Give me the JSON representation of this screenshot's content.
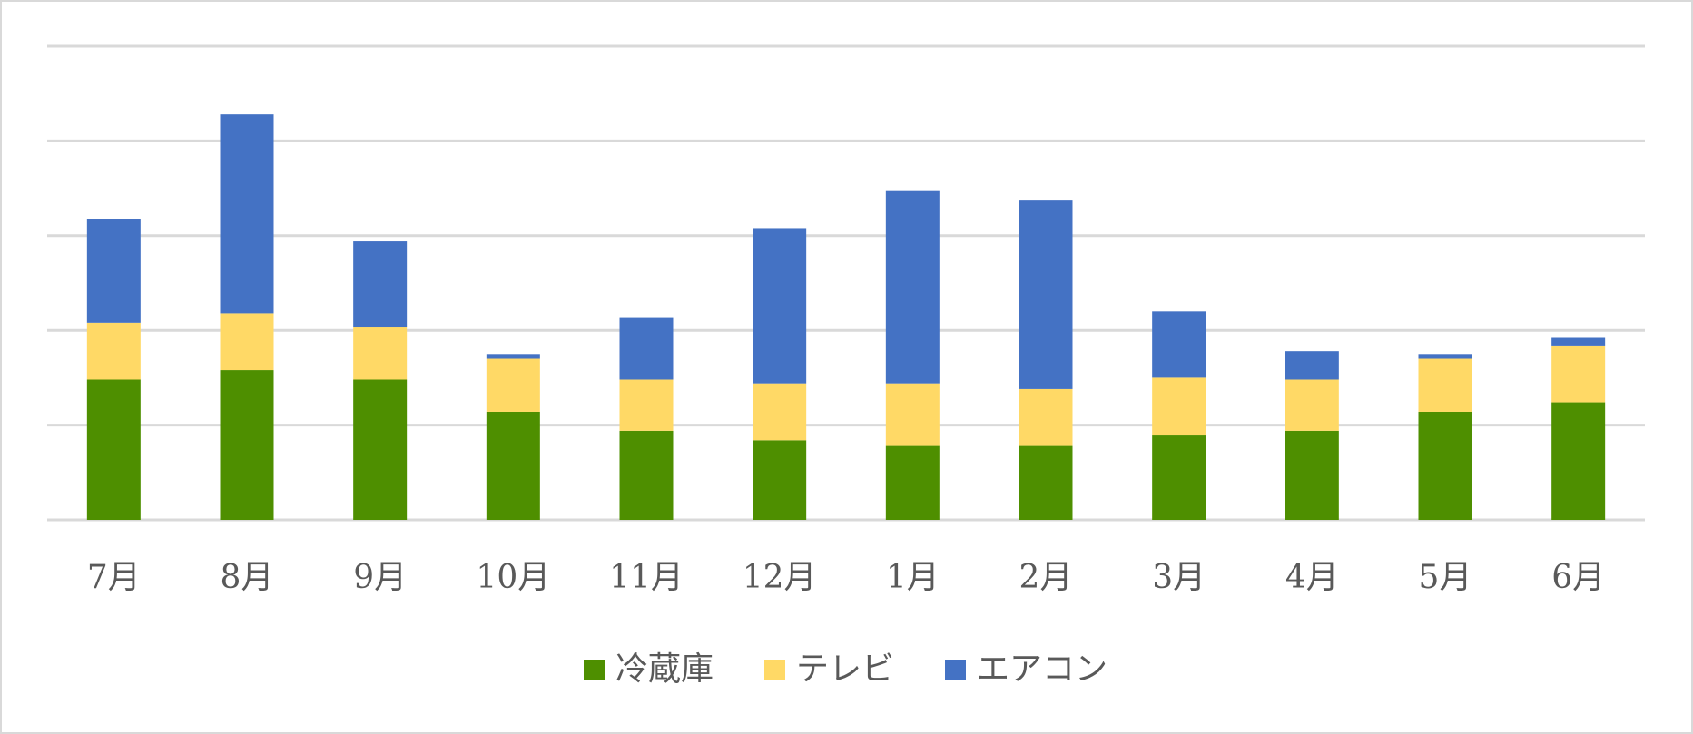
{
  "chart_data": {
    "type": "bar",
    "stacked": true,
    "categories": [
      "7月",
      "8月",
      "9月",
      "10月",
      "11月",
      "12月",
      "1月",
      "2月",
      "3月",
      "4月",
      "5月",
      "6月"
    ],
    "series": [
      {
        "name": "冷蔵庫",
        "color": "#4e8f00",
        "values": [
          7.4,
          7.9,
          7.4,
          5.7,
          4.7,
          4.2,
          3.9,
          3.9,
          4.5,
          4.7,
          5.7,
          6.2
        ]
      },
      {
        "name": "テレビ",
        "color": "#ffd966",
        "values": [
          3.0,
          3.0,
          2.8,
          2.8,
          2.7,
          3.0,
          3.3,
          3.0,
          3.0,
          2.7,
          2.8,
          3.0
        ]
      },
      {
        "name": "エアコン",
        "color": "#4472c4",
        "values": [
          5.5,
          10.5,
          4.5,
          0.25,
          3.3,
          8.2,
          10.2,
          10.0,
          3.5,
          1.5,
          0.25,
          0.45
        ]
      }
    ],
    "ylim": [
      0,
      25
    ],
    "yticks": [
      0,
      5,
      10,
      15,
      20,
      25
    ],
    "ytick_labels_shown": false,
    "grid": true,
    "legend_position": "bottom",
    "title": "",
    "xlabel": "",
    "ylabel": ""
  }
}
